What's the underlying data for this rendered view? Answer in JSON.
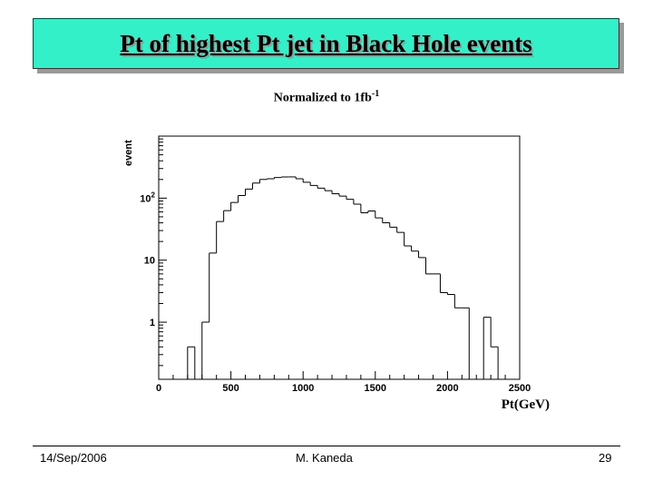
{
  "slide": {
    "title": "Pt of highest Pt jet in Black Hole events",
    "subtitle_main": "Normalized to 1fb",
    "subtitle_sup": "-1",
    "footer_date": "14/Sep/2006",
    "footer_author": "M. Kaneda",
    "footer_page": "29"
  },
  "colors": {
    "title_bg": "#33f0c8",
    "histogram": "#000000",
    "background": "#ffffff"
  },
  "chart_data": {
    "type": "histogram",
    "xlabel": "Pt(GeV)",
    "ylabel": "event",
    "x_ticks": [
      "0",
      "500",
      "1000",
      "1500",
      "2000",
      "2500"
    ],
    "y_ticks": [
      {
        "value": 1,
        "label": "1"
      },
      {
        "value": 10,
        "label": "10"
      },
      {
        "value": 100,
        "label": "10",
        "sup": "2"
      }
    ],
    "xlim": [
      0,
      2500
    ],
    "y_scale": "log",
    "ylim": [
      0.12,
      1000
    ],
    "bin_width": 50,
    "bin_edges": [
      0,
      50,
      100,
      150,
      200,
      250,
      300,
      350,
      400,
      450,
      500,
      550,
      600,
      650,
      700,
      750,
      800,
      850,
      900,
      950,
      1000,
      1050,
      1100,
      1150,
      1200,
      1250,
      1300,
      1350,
      1400,
      1450,
      1500,
      1550,
      1600,
      1650,
      1700,
      1750,
      1800,
      1850,
      1900,
      1950,
      2000,
      2050,
      2100,
      2150,
      2200,
      2250,
      2300,
      2350,
      2400,
      2450,
      2500
    ],
    "values": [
      0,
      0,
      0,
      0,
      0.4,
      0,
      1,
      13,
      42,
      63,
      85,
      110,
      140,
      175,
      200,
      205,
      215,
      220,
      220,
      205,
      180,
      160,
      145,
      132,
      118,
      108,
      96,
      80,
      58,
      62,
      48,
      40,
      34,
      28,
      17,
      14,
      11,
      6,
      6,
      3,
      2.8,
      1.7,
      1.7,
      0,
      0,
      1.2,
      0.4,
      0,
      0,
      0
    ]
  }
}
